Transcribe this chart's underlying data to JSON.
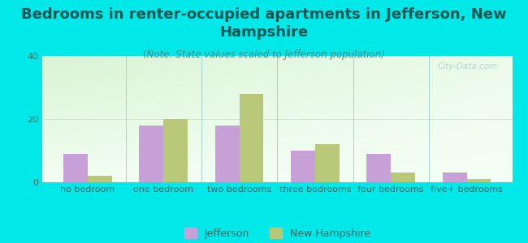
{
  "title": "Bedrooms in renter-occupied apartments in Jefferson, New\nHampshire",
  "subtitle": "(Note: State values scaled to Jefferson population)",
  "categories": [
    "no bedroom",
    "one bedroom",
    "two bedrooms",
    "three bedrooms",
    "four bedrooms",
    "five+ bedrooms"
  ],
  "jefferson_values": [
    9,
    18,
    18,
    10,
    9,
    3
  ],
  "nh_values": [
    2,
    20,
    28,
    12,
    3,
    1
  ],
  "jefferson_color": "#c8a0d8",
  "nh_color": "#b8c878",
  "background_color": "#00e8e8",
  "title_color": "#005555",
  "subtitle_color": "#448888",
  "tick_color": "#336666",
  "ylim": [
    0,
    40
  ],
  "yticks": [
    0,
    20,
    40
  ],
  "bar_width": 0.32,
  "title_fontsize": 13,
  "subtitle_fontsize": 8.5,
  "tick_fontsize": 8,
  "legend_fontsize": 9,
  "watermark": "City-Data.com"
}
